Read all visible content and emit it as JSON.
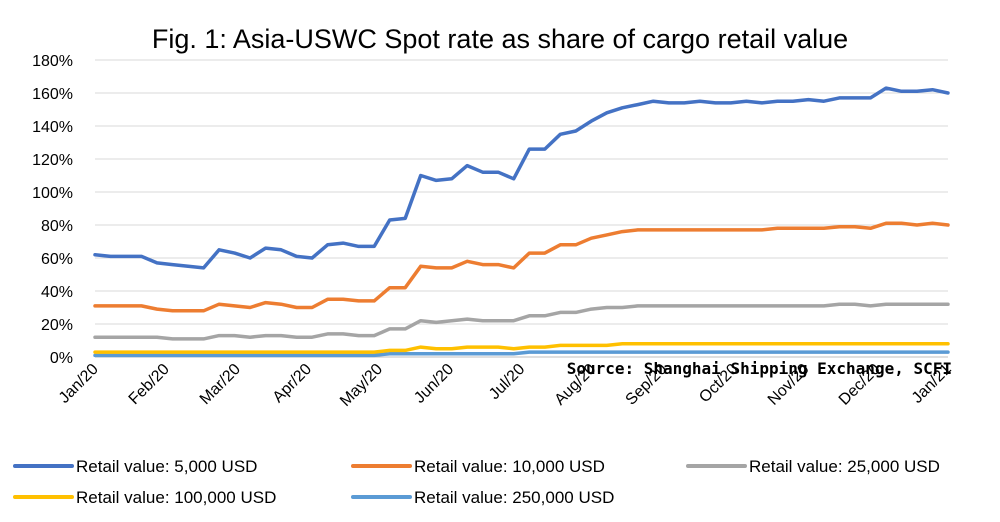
{
  "chart_data": {
    "type": "line",
    "title": "Fig. 1: Asia-USWC Spot rate as share of cargo retail value",
    "annotation": "Source: Shanghai Shipping Exchange, SCFI",
    "xlabel": "",
    "ylabel": "",
    "ylim": [
      0,
      180
    ],
    "yticks": [
      "0%",
      "20%",
      "40%",
      "60%",
      "80%",
      "100%",
      "120%",
      "140%",
      "160%",
      "180%"
    ],
    "xticks": [
      "Jan/20",
      "Feb/20",
      "Mar/20",
      "Apr/20",
      "May/20",
      "Jun/20",
      "Jul/20",
      "Aug/20",
      "Sep/20",
      "Oct/20",
      "Nov/20",
      "Dec/20",
      "Jan/21"
    ],
    "grid": "horizontal",
    "legend_position": "bottom",
    "series": [
      {
        "name": "Retail value: 5,000 USD",
        "color": "#4472C4",
        "values": [
          62,
          61,
          61,
          61,
          57,
          56,
          55,
          54,
          65,
          63,
          60,
          66,
          65,
          61,
          60,
          68,
          69,
          67,
          67,
          83,
          84,
          110,
          107,
          108,
          116,
          112,
          112,
          108,
          126,
          126,
          135,
          137,
          143,
          148,
          151,
          153,
          155,
          154,
          154,
          155,
          154,
          154,
          155,
          154,
          155,
          155,
          156,
          155,
          157,
          157,
          157,
          163,
          161,
          161,
          162,
          160
        ]
      },
      {
        "name": "Retail value: 10,000 USD",
        "color": "#ED7D31",
        "values": [
          31,
          31,
          31,
          31,
          29,
          28,
          28,
          28,
          32,
          31,
          30,
          33,
          32,
          30,
          30,
          35,
          35,
          34,
          34,
          42,
          42,
          55,
          54,
          54,
          58,
          56,
          56,
          54,
          63,
          63,
          68,
          68,
          72,
          74,
          76,
          77,
          77,
          77,
          77,
          77,
          77,
          77,
          77,
          77,
          78,
          78,
          78,
          78,
          79,
          79,
          78,
          81,
          81,
          80,
          81,
          80
        ]
      },
      {
        "name": "Retail value: 25,000 USD",
        "color": "#A5A5A5",
        "values": [
          12,
          12,
          12,
          12,
          12,
          11,
          11,
          11,
          13,
          13,
          12,
          13,
          13,
          12,
          12,
          14,
          14,
          13,
          13,
          17,
          17,
          22,
          21,
          22,
          23,
          22,
          22,
          22,
          25,
          25,
          27,
          27,
          29,
          30,
          30,
          31,
          31,
          31,
          31,
          31,
          31,
          31,
          31,
          31,
          31,
          31,
          31,
          31,
          32,
          32,
          31,
          32,
          32,
          32,
          32,
          32
        ]
      },
      {
        "name": "Retail value: 100,000 USD",
        "color": "#FFC000",
        "values": [
          3,
          3,
          3,
          3,
          3,
          3,
          3,
          3,
          3,
          3,
          3,
          3,
          3,
          3,
          3,
          3,
          3,
          3,
          3,
          4,
          4,
          6,
          5,
          5,
          6,
          6,
          6,
          5,
          6,
          6,
          7,
          7,
          7,
          7,
          8,
          8,
          8,
          8,
          8,
          8,
          8,
          8,
          8,
          8,
          8,
          8,
          8,
          8,
          8,
          8,
          8,
          8,
          8,
          8,
          8,
          8
        ]
      },
      {
        "name": "Retail value: 250,000 USD",
        "color": "#5B9BD5",
        "values": [
          1,
          1,
          1,
          1,
          1,
          1,
          1,
          1,
          1,
          1,
          1,
          1,
          1,
          1,
          1,
          1,
          1,
          1,
          1,
          2,
          2,
          2,
          2,
          2,
          2,
          2,
          2,
          2,
          3,
          3,
          3,
          3,
          3,
          3,
          3,
          3,
          3,
          3,
          3,
          3,
          3,
          3,
          3,
          3,
          3,
          3,
          3,
          3,
          3,
          3,
          3,
          3,
          3,
          3,
          3,
          3
        ]
      }
    ]
  }
}
